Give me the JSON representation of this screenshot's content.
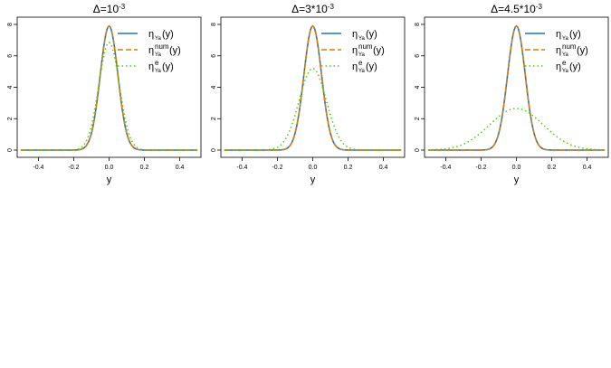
{
  "chart_data": [
    {
      "type": "line",
      "title": "Δ=10",
      "title_exp": "-3",
      "xlabel": "y",
      "ylabel": "",
      "xlim": [
        -0.5,
        0.5
      ],
      "ylim": [
        0,
        8
      ],
      "xticks": [
        "-0.4",
        "-0.2",
        "0.0",
        "0.2",
        "0.4"
      ],
      "yticks": [
        "0",
        "2",
        "4",
        "6",
        "8"
      ],
      "grid": false,
      "legend_position": "top-right",
      "series": [
        {
          "name": "ηYa(y)",
          "base": "η",
          "sub": "Ya",
          "sup": "",
          "tail": "(y)",
          "color": "#1f77b4",
          "style": "solid",
          "sigma": 0.05,
          "peak": 7.9
        },
        {
          "name": "ηYanum(y)",
          "base": "η",
          "sub": "Ya",
          "sup": "num",
          "tail": "(y)",
          "color": "#e07b00",
          "style": "dashed",
          "sigma": 0.05,
          "peak": 7.9
        },
        {
          "name": "ηYae(y)",
          "base": "η",
          "sub": "Ya",
          "sup": "e",
          "tail": "(y)",
          "color": "#4bd00a",
          "style": "dotted",
          "sigma": 0.058,
          "peak": 6.85
        }
      ]
    },
    {
      "type": "line",
      "title": "Δ=3*10",
      "title_exp": "-3",
      "xlabel": "y",
      "ylabel": "",
      "xlim": [
        -0.5,
        0.5
      ],
      "ylim": [
        0,
        8
      ],
      "xticks": [
        "-0.4",
        "-0.2",
        "0.0",
        "0.2",
        "0.4"
      ],
      "yticks": [
        "0",
        "2",
        "4",
        "6",
        "8"
      ],
      "grid": false,
      "legend_position": "top-right",
      "series": [
        {
          "name": "ηYa(y)",
          "base": "η",
          "sub": "Ya",
          "sup": "",
          "tail": "(y)",
          "color": "#1f77b4",
          "style": "solid",
          "sigma": 0.05,
          "peak": 7.9
        },
        {
          "name": "ηYanum(y)",
          "base": "η",
          "sub": "Ya",
          "sup": "num",
          "tail": "(y)",
          "color": "#e07b00",
          "style": "dashed",
          "sigma": 0.05,
          "peak": 7.9
        },
        {
          "name": "ηYae(y)",
          "base": "η",
          "sub": "Ya",
          "sup": "e",
          "tail": "(y)",
          "color": "#4bd00a",
          "style": "dotted",
          "sigma": 0.077,
          "peak": 5.2
        }
      ]
    },
    {
      "type": "line",
      "title": "Δ=4.5*10",
      "title_exp": "-3",
      "xlabel": "y",
      "ylabel": "",
      "xlim": [
        -0.5,
        0.5
      ],
      "ylim": [
        0,
        8
      ],
      "xticks": [
        "-0.4",
        "-0.2",
        "0.0",
        "0.2",
        "0.4"
      ],
      "yticks": [
        "0",
        "2",
        "4",
        "6",
        "8"
      ],
      "grid": false,
      "legend_position": "top-right",
      "series": [
        {
          "name": "ηYa(y)",
          "base": "η",
          "sub": "Ya",
          "sup": "",
          "tail": "(y)",
          "color": "#1f77b4",
          "style": "solid",
          "sigma": 0.05,
          "peak": 7.9
        },
        {
          "name": "ηYanum(y)",
          "base": "η",
          "sub": "Ya",
          "sup": "num",
          "tail": "(y)",
          "color": "#e07b00",
          "style": "dashed",
          "sigma": 0.05,
          "peak": 7.9
        },
        {
          "name": "ηYae(y)",
          "base": "η",
          "sub": "Ya",
          "sup": "e",
          "tail": "(y)",
          "color": "#4bd00a",
          "style": "dotted",
          "sigma": 0.152,
          "peak": 2.65
        }
      ]
    }
  ]
}
